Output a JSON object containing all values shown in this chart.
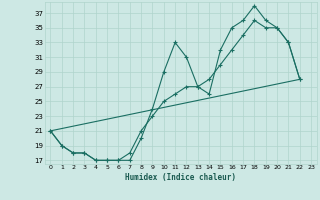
{
  "xlabel": "Humidex (Indice chaleur)",
  "background_color": "#cde8e4",
  "grid_color": "#b0d4cc",
  "line_color": "#1a6e62",
  "xlim": [
    -0.5,
    23.5
  ],
  "ylim": [
    16.5,
    38.5
  ],
  "yticks": [
    17,
    19,
    21,
    23,
    25,
    27,
    29,
    31,
    33,
    35,
    37
  ],
  "xticks": [
    0,
    1,
    2,
    3,
    4,
    5,
    6,
    7,
    8,
    9,
    10,
    11,
    12,
    13,
    14,
    15,
    16,
    17,
    18,
    19,
    20,
    21,
    22,
    23
  ],
  "line1_x": [
    0,
    1,
    2,
    3,
    4,
    5,
    6,
    7,
    8,
    9,
    10,
    11,
    12,
    13,
    14,
    15,
    16,
    17,
    18,
    19,
    20,
    21,
    22
  ],
  "line1_y": [
    21,
    19,
    18,
    18,
    17,
    17,
    17,
    17,
    20,
    24,
    29,
    33,
    31,
    27,
    26,
    32,
    35,
    36,
    38,
    36,
    35,
    33,
    28
  ],
  "line2_x": [
    0,
    1,
    2,
    3,
    4,
    5,
    6,
    7,
    8,
    9,
    10,
    11,
    12,
    13,
    14,
    15,
    16,
    17,
    18,
    19,
    20,
    21,
    22
  ],
  "line2_y": [
    21,
    19,
    18,
    18,
    17,
    17,
    17,
    18,
    21,
    23,
    25,
    26,
    27,
    27,
    28,
    30,
    32,
    34,
    36,
    35,
    35,
    33,
    28
  ],
  "line3_x": [
    0,
    22
  ],
  "line3_y": [
    21,
    28
  ]
}
